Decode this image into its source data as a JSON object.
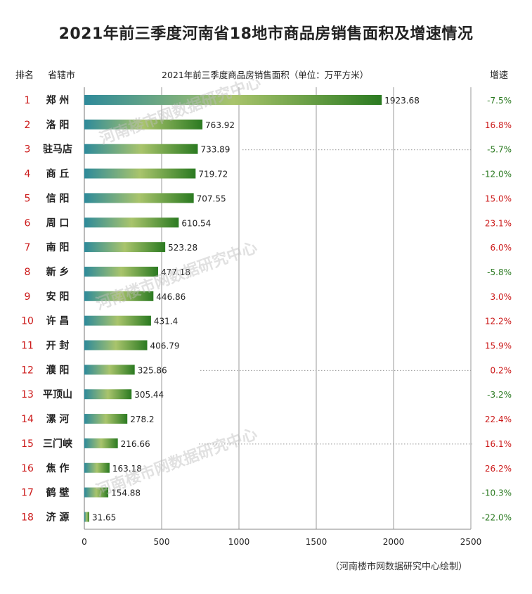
{
  "title": "2021年前三季度河南省18地市商品房销售面积及增速情况",
  "headers": {
    "rank": "排名",
    "city": "省辖市",
    "area_label": "2021年前三季度商品房销售面积（单位：万平方米）",
    "growth": "增速"
  },
  "footer": "（河南楼市网数据研究中心绘制）",
  "watermark": "河南楼市网数据研究中心",
  "colors": {
    "bar_start": "#2e8a9a",
    "bar_mid": "#a9c46c",
    "bar_end": "#2b7a21",
    "rank_red": "#cc1a1a",
    "growth_positive": "#cc1a1a",
    "growth_negative": "#2b7a21",
    "grid": "#999999"
  },
  "chart_data": {
    "type": "bar",
    "orientation": "horizontal",
    "xlim": [
      0,
      2500
    ],
    "xticks": [
      "0",
      "500",
      "1000",
      "1500",
      "2000",
      "2500"
    ],
    "xtick_values": [
      0,
      500,
      1000,
      1500,
      2000,
      2500
    ],
    "grid": true,
    "ranks": [
      "1",
      "2",
      "3",
      "4",
      "5",
      "6",
      "7",
      "8",
      "9",
      "10",
      "11",
      "12",
      "13",
      "14",
      "15",
      "16",
      "17",
      "18"
    ],
    "categories": [
      "郑 州",
      "洛 阳",
      "驻马店",
      "商 丘",
      "信 阳",
      "周 口",
      "南 阳",
      "新 乡",
      "安 阳",
      "许 昌",
      "开 封",
      "濮 阳",
      "平顶山",
      "漯 河",
      "三门峡",
      "焦 作",
      "鹤 壁",
      "济 源"
    ],
    "values": [
      1923.68,
      763.92,
      733.89,
      719.72,
      707.55,
      610.54,
      523.28,
      477.18,
      446.86,
      431.4,
      406.79,
      325.86,
      305.44,
      278.2,
      216.66,
      163.18,
      154.88,
      31.65
    ],
    "value_labels": [
      "1923.68",
      "763.92",
      "733.89",
      "719.72",
      "707.55",
      "610.54",
      "523.28",
      "477.18",
      "446.86",
      "431.4",
      "406.79",
      "325.86",
      "305.44",
      "278.2",
      "216.66",
      "163.18",
      "154.88",
      "31.65"
    ],
    "growth": [
      -7.5,
      16.8,
      -5.7,
      -12.0,
      15.0,
      23.1,
      6.0,
      -5.8,
      3.0,
      12.2,
      15.9,
      0.2,
      -3.2,
      22.4,
      16.1,
      26.2,
      -10.3,
      -22.0
    ],
    "growth_labels": [
      "-7.5%",
      "16.8%",
      "-5.7%",
      "-12.0%",
      "15.0%",
      "23.1%",
      "6.0%",
      "-5.8%",
      "3.0%",
      "12.2%",
      "15.9%",
      "0.2%",
      "-3.2%",
      "22.4%",
      "16.1%",
      "26.2%",
      "-10.3%",
      "-22.0%"
    ]
  }
}
